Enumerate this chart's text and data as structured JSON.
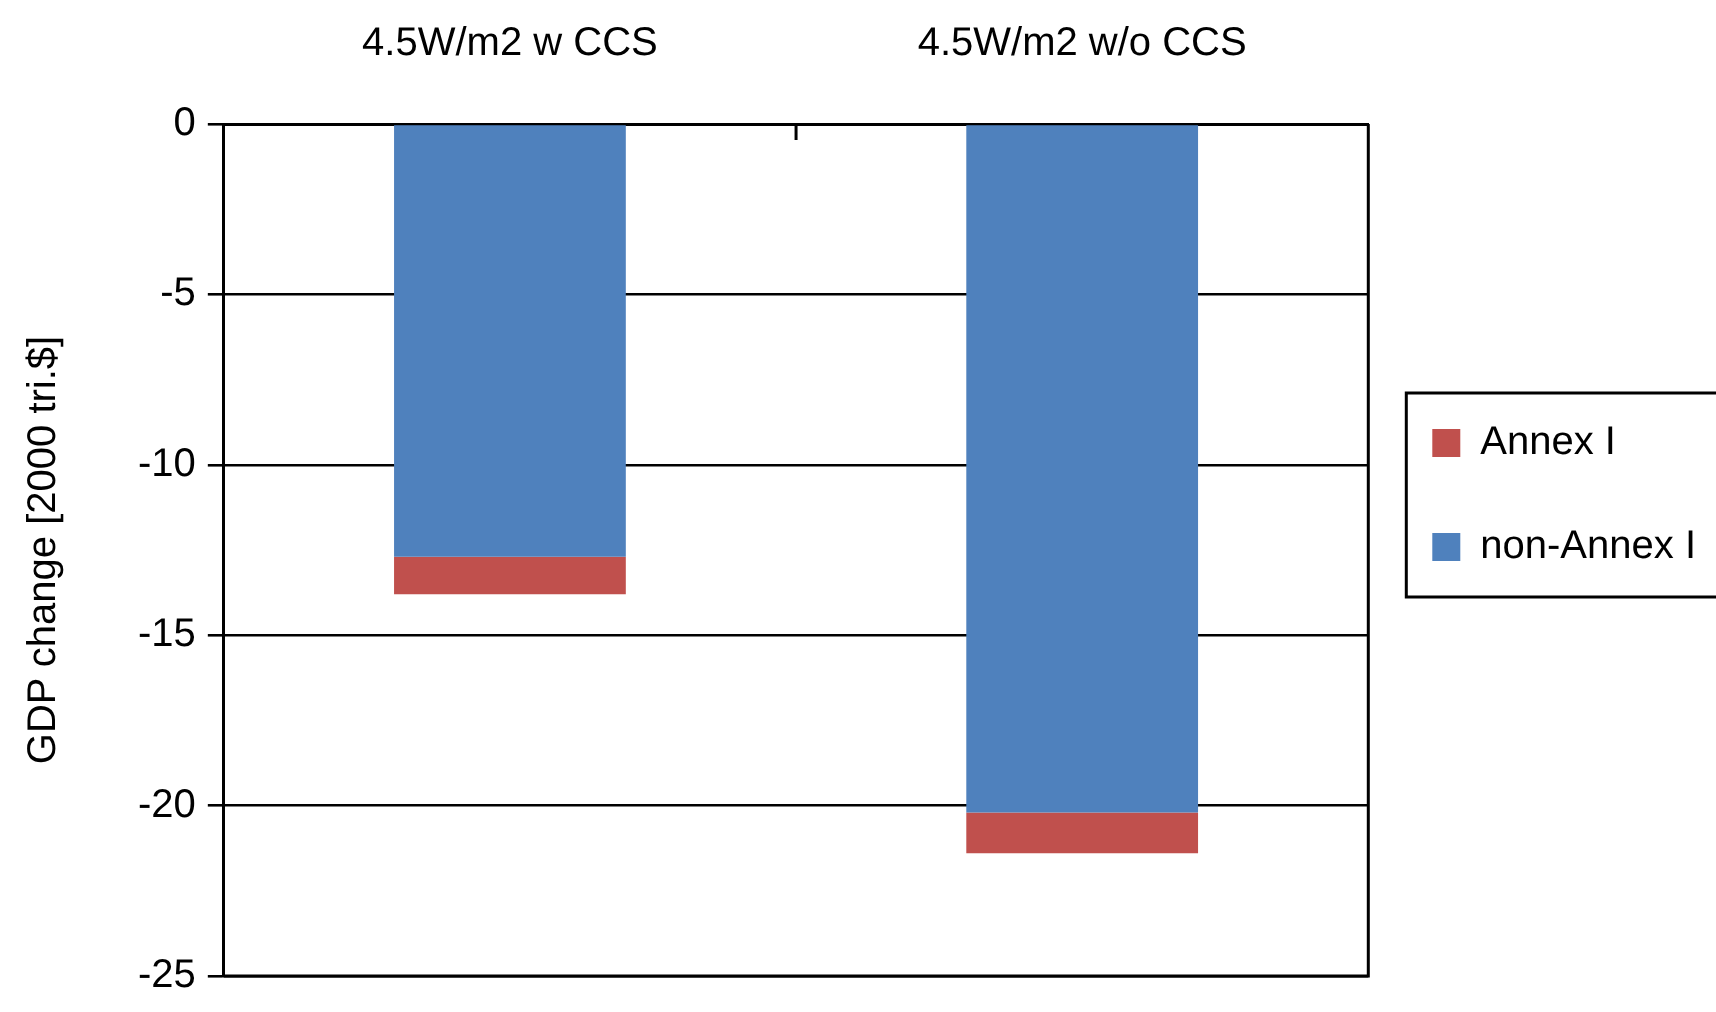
{
  "chart_data": {
    "type": "bar",
    "categories": [
      "4.5W/m2 w CCS",
      "4.5W/m2 w/o CCS"
    ],
    "series": [
      {
        "name": "non-Annex I",
        "color": "#4f81bd",
        "values": [
          -12.7,
          -20.2
        ]
      },
      {
        "name": "Annex I",
        "color": "#c0504d",
        "values": [
          -1.1,
          -1.2
        ]
      }
    ],
    "stacked": true,
    "ylabel": "GDP change [2000 tri.$]",
    "ylim": [
      -25,
      0
    ],
    "yticks": [
      0,
      -5,
      -10,
      -15,
      -20,
      -25
    ],
    "grid": "y",
    "legend": "right"
  }
}
